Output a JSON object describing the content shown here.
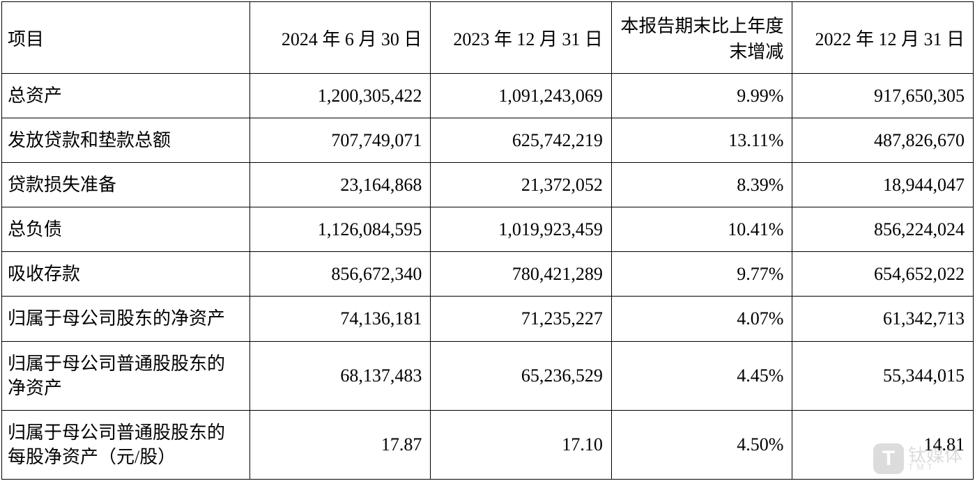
{
  "table": {
    "type": "table",
    "border_color": "#000000",
    "background_color": "#ffffff",
    "text_color": "#000000",
    "font_size_pt": 20,
    "column_widths_pct": [
      25.5,
      18.6,
      18.6,
      18.6,
      18.6
    ],
    "columns": [
      "项目",
      "2024 年 6 月 30 日",
      "2023 年 12 月 31 日",
      "本报告期末比上年度末增减",
      "2022 年 12 月 31 日"
    ],
    "column_alignments": [
      "left",
      "right",
      "right",
      "right",
      "right"
    ],
    "header_alignment": "center",
    "rows": [
      {
        "item": "总资产",
        "c1": "1,200,305,422",
        "c2": "1,091,243,069",
        "chg": "9.99%",
        "c3": "917,650,305"
      },
      {
        "item": "发放贷款和垫款总额",
        "c1": "707,749,071",
        "c2": "625,742,219",
        "chg": "13.11%",
        "c3": "487,826,670"
      },
      {
        "item": "贷款损失准备",
        "c1": "23,164,868",
        "c2": "21,372,052",
        "chg": "8.39%",
        "c3": "18,944,047"
      },
      {
        "item": "总负债",
        "c1": "1,126,084,595",
        "c2": "1,019,923,459",
        "chg": "10.41%",
        "c3": "856,224,024"
      },
      {
        "item": "吸收存款",
        "c1": "856,672,340",
        "c2": "780,421,289",
        "chg": "9.77%",
        "c3": "654,652,022"
      },
      {
        "item": "归属于母公司股东的净资产",
        "c1": "74,136,181",
        "c2": "71,235,227",
        "chg": "4.07%",
        "c3": "61,342,713"
      },
      {
        "item": "归属于母公司普通股股东的净资产",
        "c1": "68,137,483",
        "c2": "65,236,529",
        "chg": "4.45%",
        "c3": "55,344,015"
      },
      {
        "item": "归属于母公司普通股股东的每股净资产（元/股）",
        "c1": "17.87",
        "c2": "17.10",
        "chg": "4.50%",
        "c3": "14.81"
      }
    ]
  },
  "watermark": {
    "icon_letter": "T",
    "text": "钛媒体",
    "subtext": "T M T",
    "icon_bg_color": "#808080",
    "text_color": "#808080",
    "opacity": 0.28
  }
}
